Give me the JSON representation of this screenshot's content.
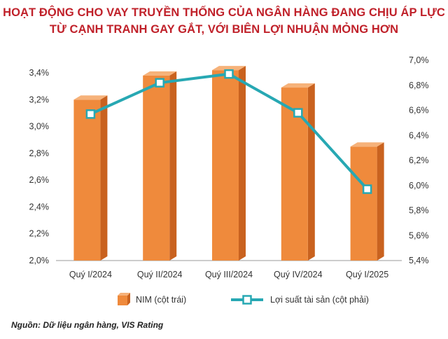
{
  "title_lines": [
    "HOẠT ĐỘNG CHO VAY TRUYỀN THỐNG CỦA NGÂN HÀNG ĐANG CHỊU ÁP LỰC",
    "TỪ CẠNH TRANH GAY GẮT, VỚI BIÊN LỢI NHUẬN MỎNG HƠN"
  ],
  "source": "Nguồn: Dữ liệu ngân hàng, VIS Rating",
  "colors": {
    "bar_front": "#ef8a3c",
    "bar_side": "#c9621f",
    "bar_top": "#f6b27a",
    "line": "#27a8b3",
    "marker_fill": "#ffffff",
    "title": "#c0212a",
    "axis": "#999999"
  },
  "chart_data": {
    "type": "bar",
    "categories": [
      "Quý I/2024",
      "Quý II/2024",
      "Quý III/2024",
      "Quý IV/2024",
      "Quý I/2025"
    ],
    "series": [
      {
        "name": "NIM (cột trái)",
        "type": "bar",
        "axis": "left",
        "values": [
          3.2,
          3.38,
          3.42,
          3.29,
          2.85
        ]
      },
      {
        "name": "Lợi suất tài sản (cột phải)",
        "type": "line",
        "axis": "right",
        "values": [
          6.57,
          6.82,
          6.89,
          6.58,
          5.97
        ]
      }
    ],
    "y_left": {
      "ylim": [
        2.0,
        3.4
      ],
      "ticks": [
        "2,0%",
        "2,2%",
        "2,4%",
        "2,6%",
        "2,8%",
        "3,0%",
        "3,2%",
        "3,4%"
      ]
    },
    "y_right": {
      "ylim": [
        5.4,
        7.0
      ],
      "ticks": [
        "5,4%",
        "5,6%",
        "5,8%",
        "6,0%",
        "6,2%",
        "6,4%",
        "6,6%",
        "6,8%",
        "7,0%"
      ]
    },
    "grid": false,
    "legend_position": "bottom"
  }
}
